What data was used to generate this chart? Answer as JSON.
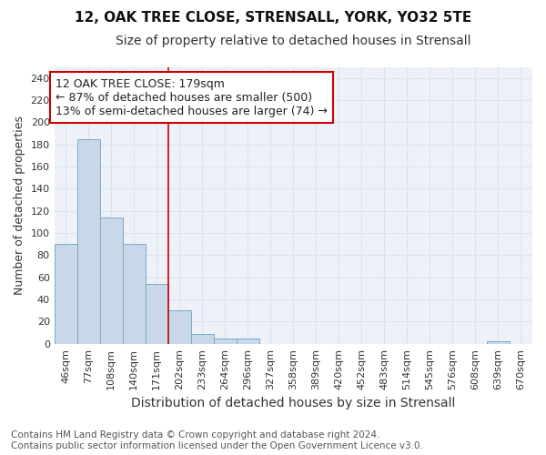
{
  "title": "12, OAK TREE CLOSE, STRENSALL, YORK, YO32 5TE",
  "subtitle": "Size of property relative to detached houses in Strensall",
  "xlabel": "Distribution of detached houses by size in Strensall",
  "ylabel": "Number of detached properties",
  "bin_labels": [
    "46sqm",
    "77sqm",
    "108sqm",
    "140sqm",
    "171sqm",
    "202sqm",
    "233sqm",
    "264sqm",
    "296sqm",
    "327sqm",
    "358sqm",
    "389sqm",
    "420sqm",
    "452sqm",
    "483sqm",
    "514sqm",
    "545sqm",
    "576sqm",
    "608sqm",
    "639sqm",
    "670sqm"
  ],
  "bin_values": [
    90,
    185,
    114,
    90,
    54,
    30,
    9,
    5,
    5,
    0,
    0,
    0,
    0,
    0,
    0,
    0,
    0,
    0,
    0,
    2,
    0
  ],
  "bar_color": "#c8d8ea",
  "bar_edge_color": "#7aaac8",
  "grid_color": "#d8e4f0",
  "background_color": "#ffffff",
  "plot_bg_color": "#eef2f8",
  "vline_x_index": 4.5,
  "vline_color": "#cc0000",
  "annotation_text": "12 OAK TREE CLOSE: 179sqm\n← 87% of detached houses are smaller (500)\n13% of semi-detached houses are larger (74) →",
  "annotation_box_color": "#ffffff",
  "annotation_box_edge": "#cc0000",
  "yticks": [
    0,
    20,
    40,
    60,
    80,
    100,
    120,
    140,
    160,
    180,
    200,
    220,
    240
  ],
  "ylim": [
    0,
    250
  ],
  "footnote": "Contains HM Land Registry data © Crown copyright and database right 2024.\nContains public sector information licensed under the Open Government Licence v3.0.",
  "title_fontsize": 11,
  "subtitle_fontsize": 10,
  "ylabel_fontsize": 9,
  "xlabel_fontsize": 10,
  "tick_fontsize": 8,
  "annotation_fontsize": 9,
  "footnote_fontsize": 7.5
}
